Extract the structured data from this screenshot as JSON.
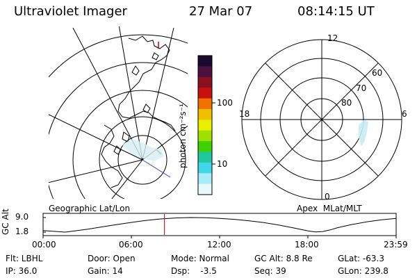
{
  "header": {
    "instrument": "Ultraviolet Imager",
    "date": "27 Mar 07",
    "time": "08:14:15 UT"
  },
  "colorbar": {
    "unit_label": "photon cm⁻²s⁻¹",
    "ticks": [
      "100",
      "10"
    ],
    "colors": [
      "#1a0a30",
      "#4a1040",
      "#8a1020",
      "#c81010",
      "#f07000",
      "#f0c000",
      "#e8f000",
      "#a0e000",
      "#40d000",
      "#20c8a0",
      "#40d8e8",
      "#a8ecf8",
      "#e8f8fc"
    ]
  },
  "geo_panel": {
    "label": "Geographic Lat/Lon"
  },
  "polar_panel": {
    "label": "Apex  MLat/MLT",
    "mlt_labels": {
      "top": "12",
      "left": "18",
      "right": "6",
      "bottom": "0"
    },
    "lat_labels": [
      "60",
      "70",
      "80"
    ]
  },
  "chart_data": {
    "type": "line",
    "title": "",
    "ylabel": "GC Alt",
    "yticks": [
      "9.0",
      "1.8"
    ],
    "ylim": [
      1.8,
      9.0
    ],
    "xticks": [
      "00:00",
      "06:00",
      "12:00",
      "18:00",
      "23:59"
    ],
    "series": [
      {
        "x": [
          0,
          1.5,
          3,
          4.5,
          6,
          7,
          8,
          9,
          10,
          11,
          12,
          13,
          14,
          15,
          16,
          17,
          18,
          18.5,
          19,
          19.5,
          20,
          21,
          22,
          23,
          23.98
        ],
        "y": [
          2.6,
          1.8,
          3.2,
          5.0,
          6.6,
          7.6,
          8.3,
          8.8,
          9.0,
          8.9,
          8.6,
          8.1,
          7.4,
          6.5,
          5.3,
          3.9,
          2.4,
          1.9,
          2.1,
          2.9,
          4.0,
          5.6,
          6.9,
          7.9,
          8.6
        ]
      }
    ],
    "marker_time": 8.24
  },
  "status": {
    "flt": "Flt: LBHL",
    "ip": "IP: 36.0",
    "door": "Door: Open",
    "gain": "Gain: 14",
    "mode": "Mode: Normal",
    "dsp": "Dsp:    -3.5",
    "gcalt": "GC Alt: 8.8 Re",
    "seq": "Seq: 39",
    "glat": "GLat: -63.3",
    "glon": "GLon: 239.8"
  }
}
